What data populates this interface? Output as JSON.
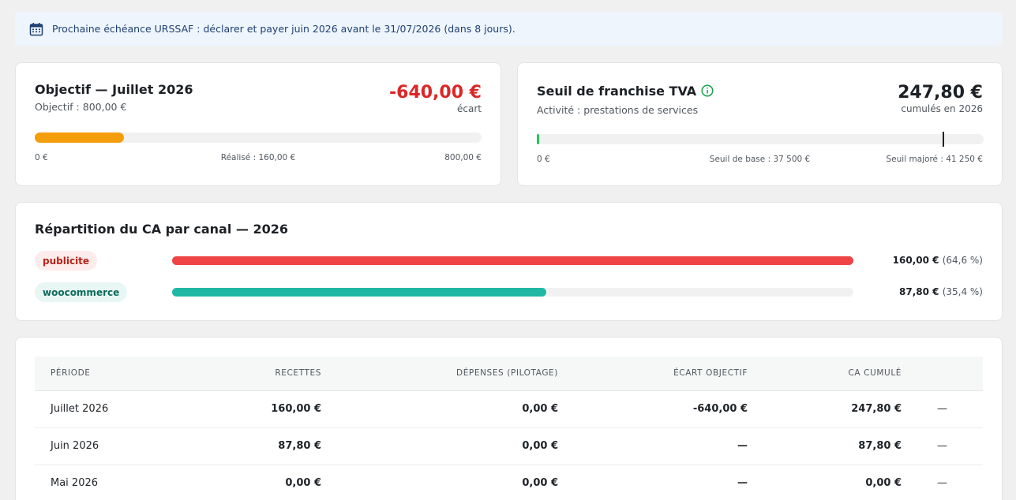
{
  "alert": {
    "icon": "calendar-icon",
    "text": "Prochaine échéance URSSAF : déclarer et payer juin 2026 avant le 31/07/2026 (dans 8 jours)."
  },
  "objective": {
    "title": "Objectif — Juillet 2026",
    "subtitle": "Objectif : 800,00 €",
    "gap_value": "-640,00 €",
    "gap_caption": "écart",
    "progress_fraction": 0.2,
    "scale_start": "0 €",
    "scale_middle": "Réalisé : 160,00 €",
    "scale_end": "800,00 €",
    "color": "#f59e0b"
  },
  "tva": {
    "title": "Seuil de franchise TVA",
    "info_icon": "info-icon",
    "subtitle": "Activité : prestations de services",
    "total_value": "247,80 €",
    "total_caption": "cumulés en 2026",
    "progress_fraction": 0.006,
    "base_marker_fraction": 0.909,
    "scale_start": "0 €",
    "scale_middle": "Seuil de base : 37 500 €",
    "scale_end": "Seuil majoré : 41 250 €",
    "color": "#22c55e"
  },
  "repartition": {
    "title": "Répartition du CA par canal — 2026",
    "channels": [
      {
        "tag": "publicite",
        "value": "160,00 €",
        "percent": "(64,6 %)",
        "fraction": 1.0,
        "color": "#ef4444",
        "tag_bg": "#fdecec",
        "tag_color": "#b42318"
      },
      {
        "tag": "woocommerce",
        "value": "87,80 €",
        "percent": "(35,4 %)",
        "fraction": 0.549,
        "color": "#20b8a4",
        "tag_bg": "#e8f7f4",
        "tag_color": "#0f6b5c"
      }
    ]
  },
  "table": {
    "headers": [
      "Période",
      "Recettes",
      "Dépenses (pilotage)",
      "Écart objectif",
      "CA cumulé",
      ""
    ],
    "rows": [
      [
        "Juillet 2026",
        "160,00 €",
        "0,00 €",
        "-640,00 €",
        "247,80 €",
        "—"
      ],
      [
        "Juin 2026",
        "87,80 €",
        "0,00 €",
        "—",
        "87,80 €",
        "—"
      ],
      [
        "Mai 2026",
        "0,00 €",
        "0,00 €",
        "—",
        "0,00 €",
        "—"
      ]
    ]
  }
}
